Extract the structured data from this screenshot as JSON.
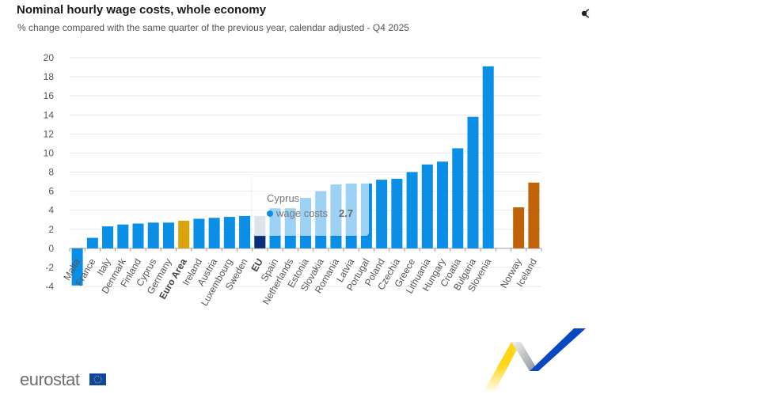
{
  "header": {
    "title": "Nominal hourly wage costs, whole economy",
    "subtitle": "% change compared with the same quarter of the previous year, calendar adjusted - Q4 2025",
    "share_icon": "share-icon"
  },
  "tooltip": {
    "country": "Cyprus",
    "series": "wage costs",
    "value": "2.7",
    "dot_color": "#0a8ee6"
  },
  "footer": {
    "logo_text": "eurostat",
    "flag_icon": "eu-flag-icon"
  },
  "colors": {
    "country": "#0a8ee6",
    "aggregate_ea": "#dba40d",
    "aggregate_eu": "#a8b8d6",
    "aggregate_eu_highlight": "#0a2f7a",
    "efta": "#c06208",
    "grid": "#e6e9ef",
    "faded_country": "#a9d5f4"
  },
  "chart_data": {
    "type": "bar",
    "title": "Nominal hourly wage costs, whole economy",
    "subtitle": "% change compared with the same quarter of the previous year, calendar adjusted - Q4 2025",
    "xlabel": "",
    "ylabel": "",
    "ylim": [
      -4,
      20
    ],
    "yticks": [
      -4,
      -2,
      0,
      2,
      4,
      6,
      8,
      10,
      12,
      14,
      16,
      18,
      20
    ],
    "grid": true,
    "legend": "none",
    "series_name": "wage costs",
    "categories": [
      "Malta",
      "France",
      "Italy",
      "Denmark",
      "Finland",
      "Cyprus",
      "Germany",
      "Euro Area",
      "Ireland",
      "Austria",
      "Luxembourg",
      "Sweden",
      "EU",
      "Spain",
      "Netherlands",
      "Estonia",
      "Slovakia",
      "Romania",
      "Latvia",
      "Portugal",
      "Poland",
      "Czechia",
      "Greece",
      "Lithuania",
      "Hungary",
      "Croatia",
      "Bulgaria",
      "Slovenia",
      "",
      "Norway",
      "Iceland"
    ],
    "values": [
      -3.9,
      1.1,
      2.3,
      2.5,
      2.6,
      2.7,
      2.7,
      2.9,
      3.1,
      3.2,
      3.3,
      3.4,
      3.4,
      4.2,
      4.2,
      5.3,
      6.0,
      6.7,
      6.8,
      6.8,
      7.2,
      7.3,
      8.0,
      8.8,
      9.1,
      10.5,
      13.8,
      19.1,
      null,
      4.3,
      6.9
    ],
    "groups": [
      "country",
      "country",
      "country",
      "country",
      "country",
      "country",
      "country",
      "aggregate_ea",
      "country",
      "country",
      "country",
      "country",
      "aggregate_eu",
      "country",
      "country",
      "country",
      "country",
      "country",
      "country",
      "country",
      "country",
      "country",
      "country",
      "country",
      "country",
      "country",
      "country",
      "country",
      "gap",
      "efta",
      "efta"
    ],
    "bold_labels": [
      "Euro Area",
      "EU"
    ]
  }
}
